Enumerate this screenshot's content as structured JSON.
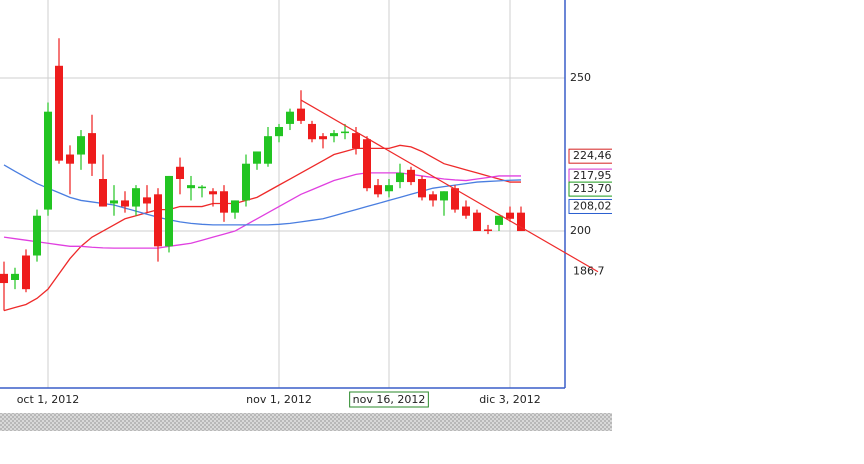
{
  "chart_data": {
    "type": "candlestick",
    "categories": [
      null,
      null,
      null,
      null,
      "oct 1, 2012",
      null,
      null,
      null,
      null,
      null,
      null,
      null,
      null,
      null,
      null,
      null,
      null,
      null,
      null,
      null,
      null,
      null,
      null,
      null,
      null,
      "nov 1, 2012",
      null,
      null,
      null,
      null,
      null,
      null,
      null,
      null,
      null,
      "nov 16, 2012",
      null,
      null,
      null,
      null,
      null,
      null,
      null,
      null,
      null,
      null,
      "dic 3, 2012",
      null
    ],
    "open": [
      186,
      184,
      192,
      192,
      207,
      254,
      225,
      225,
      232,
      217,
      209,
      210,
      208,
      211,
      212,
      195,
      221,
      214,
      214,
      213,
      213,
      206,
      210,
      222,
      222,
      231,
      235,
      240,
      235,
      231,
      231,
      232,
      232,
      230,
      215,
      213,
      216,
      220,
      217,
      212,
      210,
      214,
      208,
      206,
      200.5,
      202,
      206,
      206
    ],
    "high": [
      190,
      188,
      194,
      207,
      242,
      263,
      228,
      233,
      238,
      225,
      215,
      213,
      215,
      215,
      214,
      218,
      224,
      218,
      215,
      214,
      215,
      210,
      225,
      226,
      234,
      235,
      240,
      246,
      236,
      232,
      233,
      235,
      234,
      231,
      217,
      217,
      222,
      221,
      218,
      213,
      213,
      215,
      210,
      207,
      202,
      205,
      208,
      208
    ],
    "low": [
      174,
      181,
      180,
      190,
      205,
      222,
      212,
      220,
      218,
      208,
      205,
      206,
      205,
      206,
      190,
      193,
      212,
      210,
      211,
      208,
      203,
      204,
      208,
      220,
      221,
      229,
      233,
      235,
      229,
      227,
      229,
      230,
      225,
      213,
      211,
      211,
      214,
      215,
      210,
      208,
      205,
      206,
      204,
      200,
      199,
      200,
      203,
      200
    ],
    "close": [
      183,
      186,
      181,
      205,
      239,
      223,
      222,
      231,
      222,
      208,
      210,
      208,
      214,
      209,
      195,
      218,
      217,
      215,
      214.5,
      212,
      206,
      210,
      222,
      226,
      231,
      234,
      239,
      236,
      230,
      230,
      232,
      232.5,
      227,
      214,
      212,
      215,
      219,
      216,
      211,
      210,
      213,
      207,
      205,
      200,
      200,
      205,
      204,
      200
    ],
    "up_color": "#22c422",
    "down_color": "#ee1c1c",
    "lines": [
      {
        "color": "#ee2a2a",
        "values": [
          174,
          175,
          176,
          178,
          181,
          186,
          191,
          195,
          198,
          200,
          202,
          204,
          205,
          206,
          207,
          207,
          208,
          208,
          208,
          209,
          209,
          209,
          210,
          211,
          213,
          215,
          217,
          219,
          221,
          223,
          225,
          226,
          227,
          227,
          227,
          227,
          228,
          227.5,
          226,
          224,
          222,
          221,
          220,
          219,
          218,
          217,
          216,
          216
        ]
      },
      {
        "color": "#e040e0",
        "values": [
          198,
          197.5,
          197,
          196.5,
          196,
          195.5,
          195,
          195,
          194.7,
          194.5,
          194.4,
          194.4,
          194.4,
          194.4,
          194.4,
          195,
          195.5,
          196,
          197,
          198,
          199,
          200,
          202,
          204,
          206,
          208,
          210,
          212,
          213.5,
          215,
          216.5,
          217.5,
          218.5,
          219,
          219,
          219,
          219,
          218.5,
          218,
          217.5,
          217,
          216.7,
          216.5,
          217,
          217.5,
          218,
          218,
          218
        ]
      },
      {
        "color": "#4a7ee0",
        "values": [
          221.6,
          219.5,
          217.5,
          215.5,
          214,
          212.5,
          211,
          210,
          209.5,
          209,
          208.5,
          207.5,
          206.5,
          205.5,
          204.5,
          203.7,
          203,
          202.5,
          202.2,
          202,
          202,
          202,
          202,
          202,
          202,
          202.2,
          202.5,
          203,
          203.5,
          204,
          205,
          206,
          207,
          208,
          209,
          210,
          211,
          212,
          213,
          214,
          214.5,
          215,
          215.5,
          216,
          216.2,
          216.4,
          216.6,
          216.7
        ]
      }
    ],
    "trendline": {
      "color": "#ee2a2a",
      "x": [
        27,
        54
      ],
      "values": [
        242.8,
        186.7
      ]
    },
    "price_labels": [
      {
        "value": 224.46,
        "label": "224,46",
        "color": "#d42020",
        "boxed": true
      },
      {
        "value": 217.95,
        "label": "217,95",
        "color": "#d030d0",
        "boxed": true
      },
      {
        "value": 213.7,
        "label": "213,70",
        "color": "#1a9a1a",
        "boxed": true
      },
      {
        "value": 208.02,
        "label": "208,02",
        "color": "#2a5ed0",
        "boxed": true
      },
      {
        "value": 186.7,
        "label": "186,7",
        "color": "#333333",
        "boxed": false
      }
    ],
    "ylim": [
      148.7,
      275.5
    ],
    "yticks": [
      200,
      250
    ],
    "grid": true
  }
}
